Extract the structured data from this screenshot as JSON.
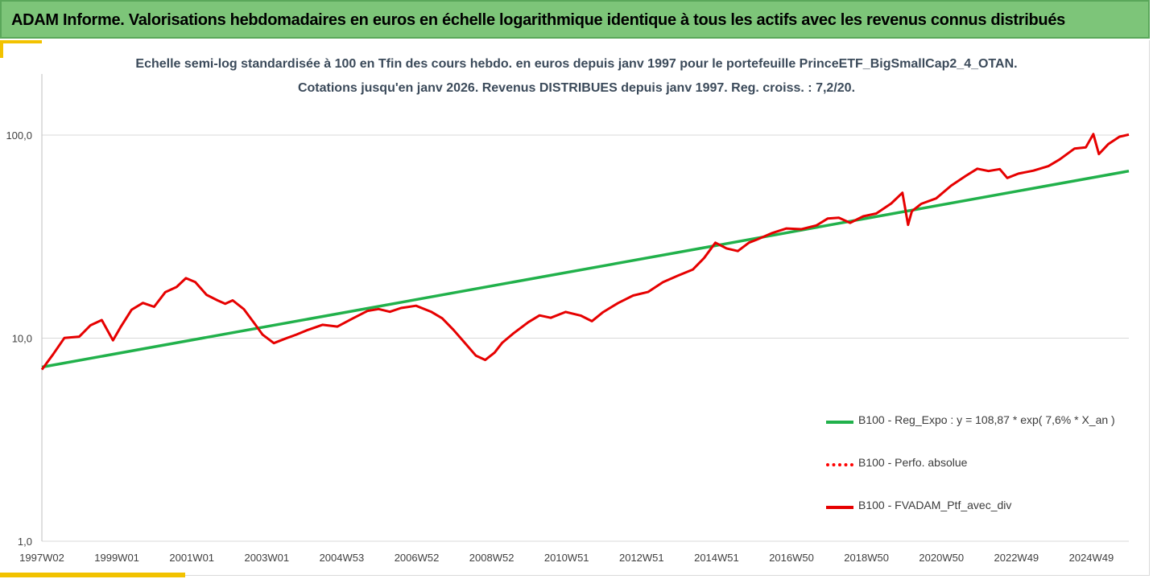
{
  "header": {
    "title": "ADAM Informe. Valorisations hebdomadaires en euros en échelle logarithmique identique à tous les actifs avec les revenus connus distribués"
  },
  "chart_data": {
    "type": "line",
    "title_line1": "Echelle semi-log standardisée  à 100 en Tfin des cours hebdo.  en euros depuis janv 1997 pour le portefeuille PrinceETF_BigSmallCap2_4_OTAN.",
    "title_line2": "Cotations jusqu'en janv 2026. Revenus DISTRIBUES depuis janv 1997. Reg. croiss. : 7,2/20.",
    "y_scale": "log",
    "ylim": [
      1,
      200
    ],
    "y_ticks": [
      {
        "value": 100,
        "label": "100,0"
      },
      {
        "value": 10,
        "label": "10,0"
      },
      {
        "value": 1,
        "label": "1,0"
      }
    ],
    "x_tick_labels": [
      "1997W02",
      "1999W01",
      "2001W01",
      "2003W01",
      "2004W53",
      "2006W52",
      "2008W52",
      "2010W51",
      "2012W51",
      "2014W51",
      "2016W50",
      "2018W50",
      "2020W50",
      "2022W49",
      "2024W49"
    ],
    "x_range_years": [
      1997.0,
      2026.05
    ],
    "grid": "horizontal",
    "legend_position": "bottom-right",
    "series": [
      {
        "name": "B100 - Reg_Expo : y = 108,87 * exp( 7,6% *  X_an )",
        "color": "#21b14b",
        "style": "solid",
        "x": [
          1997.0,
          2026.05
        ],
        "values": [
          7.2,
          66.5
        ]
      },
      {
        "name": "B100 - Perfo. absolue",
        "color": "#ff0000",
        "style": "dotted",
        "x": [],
        "values": []
      },
      {
        "name": "B100 - FVADAM_Ptf_avec_div",
        "color": "#e60000",
        "style": "solid",
        "x": [
          1997.0,
          1997.3,
          1997.6,
          1998.0,
          1998.3,
          1998.6,
          1998.9,
          1999.1,
          1999.4,
          1999.7,
          2000.0,
          2000.3,
          2000.6,
          2000.85,
          2001.1,
          2001.4,
          2001.7,
          2001.9,
          2002.1,
          2002.4,
          2002.7,
          2002.9,
          2003.2,
          2003.5,
          2003.8,
          2004.1,
          2004.5,
          2004.9,
          2005.3,
          2005.7,
          2006.0,
          2006.3,
          2006.6,
          2007.0,
          2007.4,
          2007.7,
          2008.0,
          2008.3,
          2008.6,
          2008.85,
          2009.1,
          2009.3,
          2009.6,
          2010.0,
          2010.3,
          2010.6,
          2011.0,
          2011.4,
          2011.7,
          2012.0,
          2012.4,
          2012.8,
          2013.2,
          2013.6,
          2014.0,
          2014.4,
          2014.7,
          2015.0,
          2015.3,
          2015.6,
          2015.9,
          2016.1,
          2016.5,
          2016.9,
          2017.3,
          2017.7,
          2018.0,
          2018.3,
          2018.6,
          2018.95,
          2019.3,
          2019.7,
          2020.0,
          2020.15,
          2020.25,
          2020.5,
          2020.9,
          2021.3,
          2021.7,
          2022.0,
          2022.3,
          2022.6,
          2022.8,
          2023.1,
          2023.5,
          2023.9,
          2024.2,
          2024.6,
          2024.9,
          2025.1,
          2025.25,
          2025.5,
          2025.8,
          2026.05
        ],
        "values": [
          7.0,
          8.5,
          9.8,
          10.2,
          11.8,
          12.0,
          9.8,
          11.5,
          13.5,
          15.0,
          14.5,
          16.5,
          18.0,
          20.0,
          18.5,
          16.5,
          15.5,
          14.5,
          15.5,
          14.0,
          11.5,
          10.5,
          9.5,
          9.8,
          10.5,
          11.0,
          11.5,
          11.5,
          12.5,
          13.5,
          14.0,
          13.5,
          14.0,
          14.5,
          13.5,
          12.5,
          11.0,
          9.5,
          8.2,
          7.8,
          8.5,
          9.5,
          10.5,
          12.0,
          13.0,
          12.5,
          13.5,
          13.0,
          12.0,
          13.5,
          15.0,
          16.0,
          17.0,
          19.0,
          20.0,
          22.0,
          25.0,
          29.0,
          28.0,
          27.0,
          29.0,
          31.0,
          33.0,
          34.0,
          35.0,
          36.0,
          38.0,
          40.0,
          37.0,
          39.0,
          42.0,
          46.0,
          51.0,
          37.0,
          42.0,
          45.0,
          50.0,
          56.0,
          62.0,
          70.0,
          66.0,
          67.0,
          63.0,
          64.0,
          66.0,
          72.0,
          75.0,
          85.0,
          89.0,
          100.0,
          80.0,
          92.0,
          97.0,
          100.0
        ]
      }
    ]
  }
}
